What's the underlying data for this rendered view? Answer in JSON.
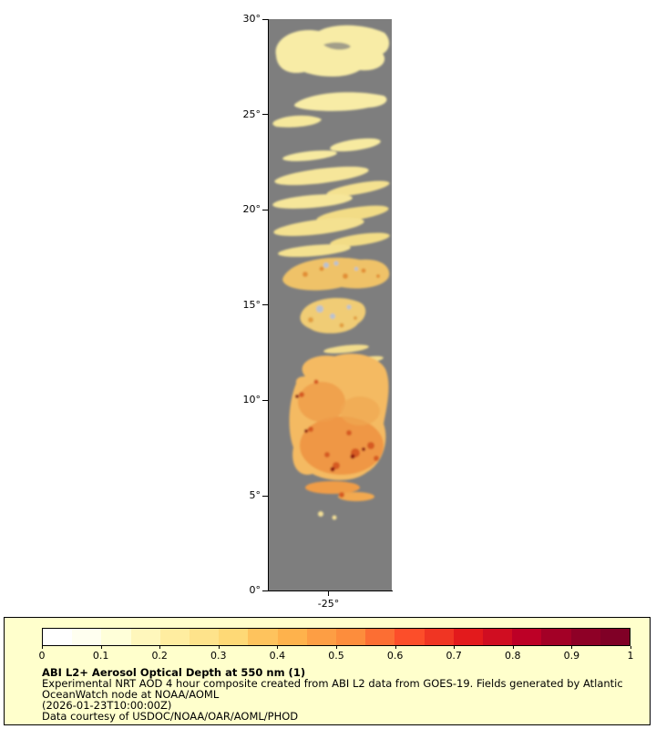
{
  "map": {
    "no_data_color": "#7E7E7E",
    "y_axis": {
      "ticks": [
        "30°",
        "25°",
        "20°",
        "15°",
        "10°",
        "5°",
        "0°"
      ]
    },
    "x_axis": {
      "ticks": [
        "-25°"
      ]
    }
  },
  "legend": {
    "background_color": "#FFFFCC",
    "colorbar": {
      "tick_labels": [
        "0",
        "0.1",
        "0.2",
        "0.3",
        "0.4",
        "0.5",
        "0.6",
        "0.7",
        "0.8",
        "0.9",
        "1"
      ],
      "colors": [
        "#FFFFFF",
        "#FFFFF0",
        "#FFFFD9",
        "#FFF7BC",
        "#FFEDA0",
        "#FEE38B",
        "#FED976",
        "#FEC35D",
        "#FEB24C",
        "#FD9E44",
        "#FD8D3C",
        "#FC6E33",
        "#FC4E2A",
        "#F03523",
        "#E31A1C",
        "#D00D21",
        "#BD0026",
        "#A30026",
        "#8E0026",
        "#800026"
      ]
    },
    "title": "ABI L2+ Aerosol Optical Depth at 550 nm (1)",
    "description": "Experimental NRT AOD 4 hour composite created from ABI L2 data from GOES-19. Fields generated by Atlantic OceanWatch node at NOAA/AOML",
    "timestamp": "(2026-01-23T10:00:00Z)",
    "courtesy": "Data courtesy of USDOC/NOAA/OAR/AOML/PHOD"
  },
  "chart_data": {
    "type": "heatmap",
    "title": "ABI L2+ Aerosol Optical Depth at 550 nm (1)",
    "variable": "Aerosol Optical Depth at 550 nm",
    "colorbar_range": [
      0,
      1
    ],
    "colorbar_ticks": [
      0,
      0.1,
      0.2,
      0.3,
      0.4,
      0.5,
      0.6,
      0.7,
      0.8,
      0.9,
      1
    ],
    "y_axis": {
      "label": "latitude",
      "range_deg": [
        0,
        30
      ],
      "ticks": [
        "0°",
        "5°",
        "10°",
        "15°",
        "20°",
        "25°",
        "30°"
      ]
    },
    "x_axis": {
      "label": "longitude",
      "ticks": [
        "-25°"
      ]
    },
    "no_data_color": "#7E7E7E",
    "features": [
      {
        "lat_range": [
          27,
          30
        ],
        "description": "broad pale-yellow aerosol plume",
        "aod_approx": 0.15
      },
      {
        "lat_range": [
          23,
          26.5
        ],
        "description": "thin pale-yellow streaks",
        "aod_approx": 0.15
      },
      {
        "lat_range": [
          19,
          22.5
        ],
        "description": "banded yellow dust streaks",
        "aod_approx": 0.2
      },
      {
        "lat_range": [
          17,
          18.5
        ],
        "description": "orange speckled band with gray cloud gaps",
        "aod_approx": 0.35
      },
      {
        "lat_range": [
          14.5,
          16.5
        ],
        "description": "yellow-orange patch with gray cloud spots",
        "aod_approx": 0.3
      },
      {
        "lat_range": [
          6,
          12.5
        ],
        "description": "dense orange dust plume with dark-red cores",
        "aod_approx": 0.55,
        "aod_max": 0.95
      },
      {
        "lat_range": [
          5,
          6
        ],
        "description": "trailing orange wisps",
        "aod_approx": 0.4
      }
    ]
  }
}
